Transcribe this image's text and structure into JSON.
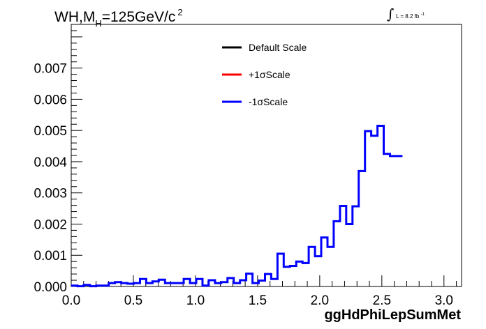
{
  "title": {
    "prefix": "WH,M",
    "subscript": "H",
    "main": "=125GeV/c",
    "superscript": "2"
  },
  "luminosity": {
    "symbol": "∫",
    "text": "L = 8.2 fb",
    "exponent": "-1"
  },
  "legend": [
    {
      "label": "Default Scale",
      "color": "#000000"
    },
    {
      "label": "+1σScale",
      "color": "#ff0000"
    },
    {
      "label": "-1σScale",
      "color": "#0000ff"
    }
  ],
  "chart_data": {
    "type": "line",
    "xlabel": "ggHdPhiLepSumMet",
    "xlim": [
      0.0,
      3.1416
    ],
    "ylim": [
      0.0,
      0.0084
    ],
    "x_ticks": [
      "0.0",
      "0.5",
      "1.0",
      "1.5",
      "2.0",
      "2.5",
      "3.0"
    ],
    "x_tick_values": [
      0.0,
      0.5,
      1.0,
      1.5,
      2.0,
      2.5,
      3.0
    ],
    "y_ticks": [
      "0.000",
      "0.001",
      "0.002",
      "0.003",
      "0.004",
      "0.005",
      "0.006",
      "0.007"
    ],
    "y_tick_values": [
      0.0,
      0.001,
      0.002,
      0.003,
      0.004,
      0.005,
      0.006,
      0.007
    ],
    "bin_edges_start": 0.0,
    "bin_width": 0.0503,
    "series": [
      {
        "name": "-1σScale",
        "color": "#0000ff",
        "values": [
          3e-05,
          1e-05,
          5e-05,
          1e-05,
          3e-05,
          3e-05,
          0.00011,
          0.00014,
          0.00011,
          9e-05,
          0.00011,
          0.00024,
          0.00011,
          0.00016,
          0.00022,
          0.00011,
          0.00011,
          0.00011,
          0.00024,
          0.00011,
          0.00024,
          3e-05,
          0.0002,
          0.00011,
          0.00014,
          0.00027,
          0.00011,
          0.0002,
          0.00041,
          0.00011,
          0.00019,
          0.0004,
          0.00024,
          0.00105,
          0.00063,
          0.00066,
          0.0008,
          0.00075,
          0.00127,
          0.00097,
          0.00157,
          0.00127,
          0.00209,
          0.00258,
          0.002,
          0.00257,
          0.0037,
          0.00498,
          0.00483,
          0.00515,
          0.00425,
          0.00418,
          0.00418
        ]
      }
    ]
  }
}
